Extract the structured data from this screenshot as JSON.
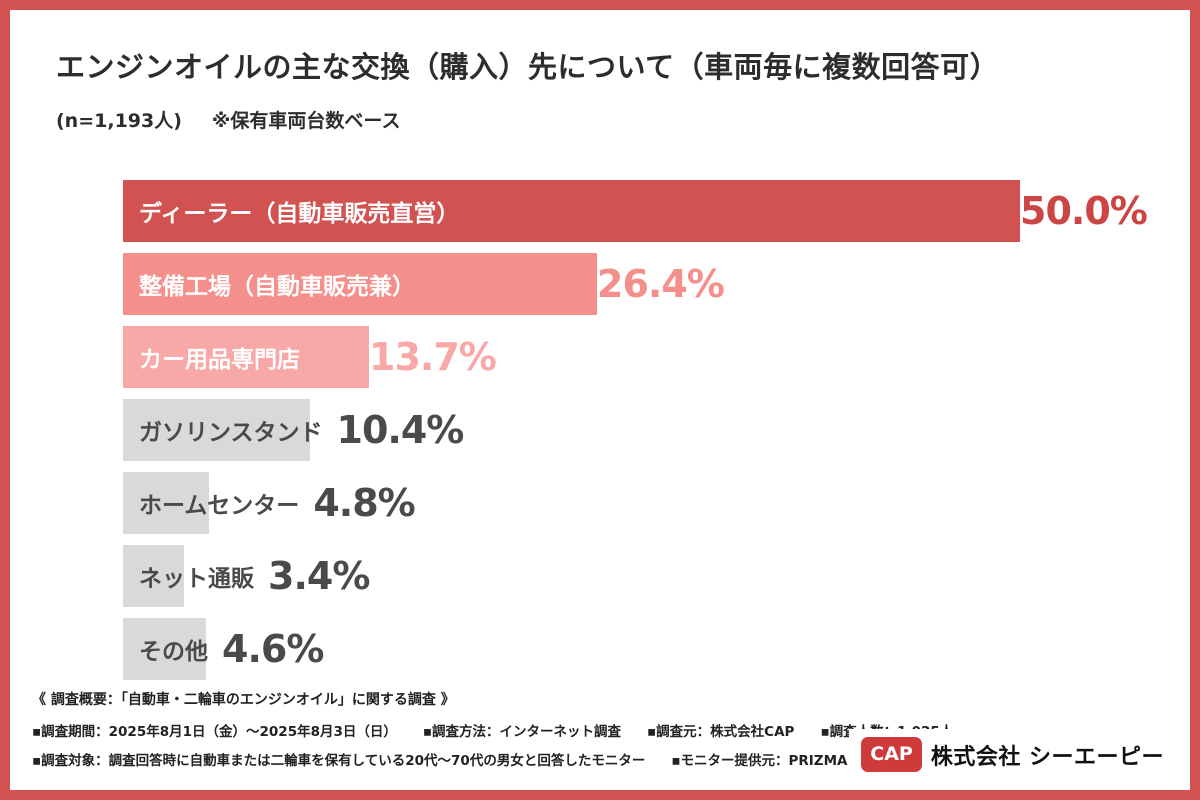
{
  "header": {
    "title": "エンジンオイルの主な交換（購入）先について（車両毎に複数回答可）",
    "sample_size": "(n=1,193人)",
    "note": "※保有車両台数ベース"
  },
  "chart_data": {
    "type": "bar",
    "orientation": "horizontal",
    "title": "エンジンオイルの主な交換（購入）先について（車両毎に複数回答可）",
    "categories": [
      "ディーラー（自動車販売直営）",
      "整備工場（自動車販売兼）",
      "カー用品専門店",
      "ガソリンスタンド",
      "ホームセンター",
      "ネット通販",
      "その他"
    ],
    "values": [
      50.0,
      26.4,
      13.7,
      10.4,
      4.8,
      3.4,
      4.6
    ],
    "value_labels": [
      "50.0%",
      "26.4%",
      "13.7%",
      "10.4%",
      "4.8%",
      "3.4%",
      "4.6%"
    ],
    "bar_colors": [
      "#d25151",
      "#f58f8c",
      "#f8a8a6",
      "#d9d9d9",
      "#d9d9d9",
      "#d9d9d9",
      "#d9d9d9"
    ],
    "label_colors": [
      "#ffffff",
      "#ffffff",
      "#ffffff",
      "#4a4a4a",
      "#4a4a4a",
      "#4a4a4a",
      "#4a4a4a"
    ],
    "value_colors": [
      "#cc4444",
      "#f58f8c",
      "#f8a8a6",
      "#4a4a4a",
      "#4a4a4a",
      "#4a4a4a",
      "#4a4a4a"
    ],
    "xlim": [
      0,
      50
    ],
    "grid": false,
    "legend": "none"
  },
  "footer": {
    "line1": "《 調査概要：「自動車・二輪車のエンジンオイル」に関する調査 》",
    "line2_items": {
      "0": "▪調査期間：2025年8月1日（金）〜2025年8月3日（日）",
      "1": "▪調査方法：インターネット調査",
      "2": "▪調査元：株式会社CAP",
      "3": "▪調査人数：1,025人"
    },
    "line3_items": {
      "0": "▪調査対象：調査回答時に自動車または二輪車を保有している20代〜70代の男女と回答したモニター",
      "1": "▪モニター提供元：PRIZMAリサーチ"
    },
    "logo": {
      "badge": "CAP",
      "company": "株式会社 シーエーピー"
    }
  },
  "colors": {
    "frame_border": "#d25151",
    "background": "#ffffff",
    "gray_bar": "#d9d9d9",
    "text_dark": "#2d2d2d"
  }
}
